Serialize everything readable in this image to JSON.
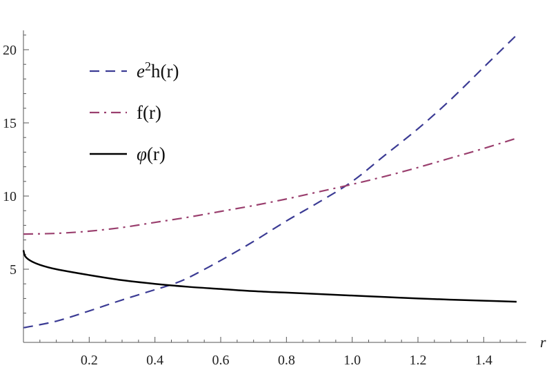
{
  "chart_data": {
    "type": "line",
    "title": "",
    "xlabel": "r",
    "ylabel": "",
    "xlim": [
      0,
      1.52
    ],
    "ylim": [
      0,
      21.2
    ],
    "grid": false,
    "legend_position": "top-left",
    "x_ticks": [
      0.2,
      0.4,
      0.6,
      0.8,
      1.0,
      1.2,
      1.4
    ],
    "x_tick_labels": [
      "0.2",
      "0.4",
      "0.6",
      "0.8",
      "1.0",
      "1.2",
      "1.4"
    ],
    "y_ticks": [
      5,
      10,
      15,
      20
    ],
    "y_tick_labels": [
      "5",
      "10",
      "15",
      "20"
    ],
    "series": [
      {
        "legend_base": "e",
        "legend_sup": "2",
        "legend_rest": "h(r)",
        "color": "#3b3b94",
        "dash": "dashed",
        "x": [
          0.0,
          0.1,
          0.2,
          0.3,
          0.4,
          0.45,
          0.5,
          0.6,
          0.7,
          0.8,
          0.9,
          1.0,
          1.1,
          1.2,
          1.3,
          1.4,
          1.5
        ],
        "y": [
          1.0,
          1.45,
          2.15,
          2.9,
          3.6,
          3.95,
          4.4,
          5.6,
          6.9,
          8.3,
          9.6,
          11.0,
          12.8,
          14.6,
          16.6,
          18.8,
          21.0
        ]
      },
      {
        "legend_base": "f",
        "legend_sup": "",
        "legend_rest": "(r)",
        "color": "#9a3f6e",
        "dash": "dashdot",
        "x": [
          0.0,
          0.1,
          0.2,
          0.3,
          0.4,
          0.5,
          0.6,
          0.7,
          0.8,
          0.9,
          1.0,
          1.1,
          1.2,
          1.3,
          1.4,
          1.5
        ],
        "y": [
          7.4,
          7.45,
          7.6,
          7.85,
          8.2,
          8.55,
          8.95,
          9.35,
          9.8,
          10.3,
          10.8,
          11.35,
          11.95,
          12.6,
          13.25,
          13.95
        ]
      },
      {
        "legend_base": "φ",
        "legend_sup": "",
        "legend_rest": "(r)",
        "color": "#000000",
        "dash": "solid",
        "x": [
          0.0,
          0.005,
          0.02,
          0.05,
          0.1,
          0.2,
          0.3,
          0.4,
          0.5,
          0.6,
          0.7,
          0.8,
          0.9,
          1.0,
          1.1,
          1.2,
          1.3,
          1.4,
          1.5
        ],
        "y": [
          6.3,
          5.9,
          5.6,
          5.3,
          5.0,
          4.6,
          4.25,
          4.0,
          3.8,
          3.65,
          3.5,
          3.4,
          3.3,
          3.2,
          3.1,
          3.0,
          2.92,
          2.85,
          2.78
        ]
      }
    ]
  }
}
